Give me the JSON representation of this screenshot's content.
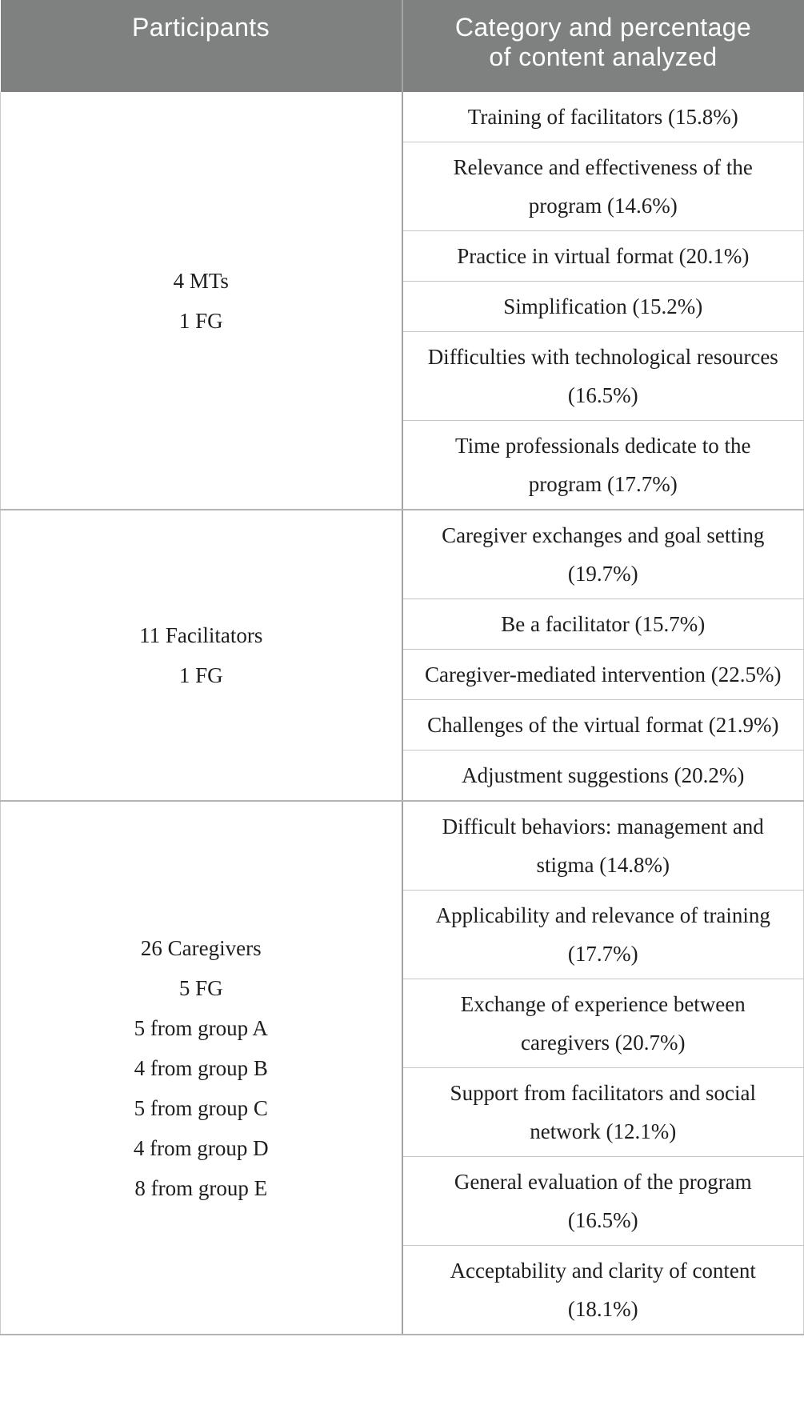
{
  "colors": {
    "header_bg": "#7f8080",
    "header_text": "#ffffff",
    "body_text": "#1e1e1e",
    "column_divider": "#a2a3a4",
    "row_divider": "#c5c5c6",
    "group_divider": "#b3b4b5",
    "outer_border": "#cacaca"
  },
  "table": {
    "header": {
      "participants": "Participants",
      "category": "Category and percentage of content analyzed"
    },
    "groups": [
      {
        "participant_lines": [
          "4 MTs",
          "1 FG"
        ],
        "categories": [
          "Training of facilitators (15.8%)",
          "Relevance and effectiveness of the program (14.6%)",
          "Practice in virtual format (20.1%)",
          "Simplification (15.2%)",
          "Difficulties with technological resources (16.5%)",
          "Time professionals dedicate to the program (17.7%)"
        ]
      },
      {
        "participant_lines": [
          "11 Facilitators",
          "1 FG"
        ],
        "categories": [
          "Caregiver exchanges and goal setting (19.7%)",
          "Be a facilitator (15.7%)",
          "Caregiver-mediated intervention (22.5%)",
          "Challenges of the virtual format (21.9%)",
          "Adjustment suggestions (20.2%)"
        ]
      },
      {
        "participant_lines": [
          "26 Caregivers",
          "5 FG",
          "5 from group A",
          "4 from group B",
          "5 from group C",
          "4 from group D",
          "8 from group E"
        ],
        "categories": [
          "Difficult behaviors: management and stigma (14.8%)",
          "Applicability and relevance of training (17.7%)",
          "Exchange of experience between caregivers (20.7%)",
          "Support from facilitators and social network (12.1%)",
          "General evaluation of the program (16.5%)",
          "Acceptability and clarity of content (18.1%)"
        ]
      }
    ]
  }
}
